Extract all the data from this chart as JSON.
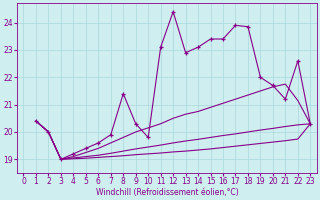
{
  "background_color": "#ceeef0",
  "grid_color": "#aad8dc",
  "line_color": "#880088",
  "marker": "+",
  "xlabel": "Windchill (Refroidissement éolien,°C)",
  "xlim": [
    -0.5,
    23.5
  ],
  "ylim": [
    18.5,
    24.7
  ],
  "yticks": [
    19,
    20,
    21,
    22,
    23,
    24
  ],
  "xticks": [
    0,
    1,
    2,
    3,
    4,
    5,
    6,
    7,
    8,
    9,
    10,
    11,
    12,
    13,
    14,
    15,
    16,
    17,
    18,
    19,
    20,
    21,
    22,
    23
  ],
  "series": {
    "main": {
      "x": [
        1,
        2,
        3,
        4,
        5,
        6,
        7,
        8,
        9,
        10,
        11,
        12,
        13,
        14,
        15,
        16,
        17,
        18,
        19,
        20,
        21,
        22,
        23
      ],
      "y": [
        20.4,
        20.0,
        19.0,
        19.2,
        19.4,
        19.6,
        19.9,
        21.4,
        20.3,
        19.8,
        23.1,
        24.4,
        22.9,
        23.1,
        23.4,
        23.4,
        23.9,
        23.85,
        22.0,
        21.7,
        21.2,
        22.6,
        20.3
      ]
    },
    "curve1": {
      "x": [
        1,
        2,
        3,
        4,
        5,
        6,
        7,
        8,
        9,
        10,
        11,
        12,
        13,
        14,
        15,
        16,
        17,
        18,
        19,
        20,
        21,
        22,
        23
      ],
      "y": [
        20.4,
        20.0,
        19.0,
        19.1,
        19.25,
        19.4,
        19.6,
        19.8,
        20.0,
        20.15,
        20.3,
        20.5,
        20.65,
        20.75,
        20.9,
        21.05,
        21.2,
        21.35,
        21.5,
        21.65,
        21.75,
        21.15,
        20.3
      ]
    },
    "curve2": {
      "x": [
        1,
        2,
        3,
        4,
        5,
        6,
        7,
        8,
        9,
        10,
        11,
        12,
        13,
        14,
        15,
        16,
        17,
        18,
        19,
        20,
        21,
        22,
        23
      ],
      "y": [
        20.4,
        20.0,
        19.0,
        19.05,
        19.1,
        19.15,
        19.22,
        19.3,
        19.38,
        19.45,
        19.52,
        19.6,
        19.67,
        19.73,
        19.8,
        19.87,
        19.93,
        20.0,
        20.07,
        20.13,
        20.2,
        20.26,
        20.3
      ]
    },
    "curve3": {
      "x": [
        1,
        2,
        3,
        4,
        5,
        6,
        7,
        8,
        9,
        10,
        11,
        12,
        13,
        14,
        15,
        16,
        17,
        18,
        19,
        20,
        21,
        22,
        23
      ],
      "y": [
        20.4,
        20.0,
        19.0,
        19.02,
        19.04,
        19.07,
        19.1,
        19.13,
        19.17,
        19.2,
        19.23,
        19.27,
        19.3,
        19.34,
        19.38,
        19.43,
        19.48,
        19.53,
        19.58,
        19.63,
        19.68,
        19.74,
        20.3
      ]
    }
  },
  "font_size": 5.5,
  "tick_font_size": 5.5,
  "lw": 0.8,
  "marker_size": 3.5
}
